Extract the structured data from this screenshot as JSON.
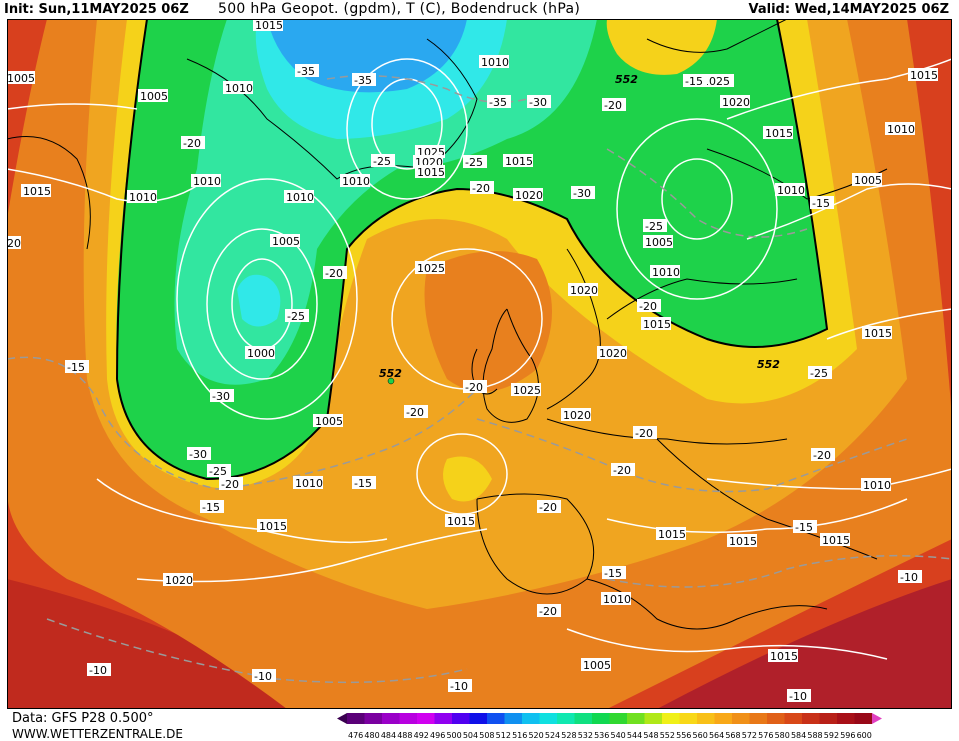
{
  "header": {
    "init": "Init: Sun,11MAY2025 06Z",
    "title": "500 hPa Geopot. (gpdm), T (C), Bodendruck (hPa)",
    "valid": "Valid: Wed,14MAY2025 06Z"
  },
  "footer": {
    "data_source": "Data: GFS P28 0.500°",
    "website": "WWW.WETTERZENTRALE.DE"
  },
  "colors": {
    "dark_red": "#b0202a",
    "red": "#d8401e",
    "orange": "#e8801e",
    "yellow_orange": "#f0a520",
    "yellow": "#f5d21a",
    "green": "#1ed24a",
    "teal": "#32e6a0",
    "cyan": "#30e8e8",
    "light_blue": "#2aa8f0",
    "land_line": "#000000",
    "isobar": "#ffffff",
    "isotherm": "#9a9a9a"
  },
  "colorbar": {
    "levels": [
      "476",
      "480",
      "484",
      "488",
      "492",
      "496",
      "500",
      "504",
      "508",
      "512",
      "516",
      "520",
      "524",
      "528",
      "532",
      "536",
      "540",
      "544",
      "548",
      "552",
      "556",
      "560",
      "564",
      "568",
      "572",
      "576",
      "580",
      "584",
      "588",
      "592",
      "596",
      "600"
    ],
    "colors": [
      "#3a0050",
      "#5a0078",
      "#7a00a0",
      "#9a00c8",
      "#b800e0",
      "#d000f0",
      "#9000f0",
      "#5000f0",
      "#1010e8",
      "#1050f0",
      "#1090f0",
      "#10c0f0",
      "#10e0e0",
      "#10e8b0",
      "#10e080",
      "#10d850",
      "#30d830",
      "#70e020",
      "#b0e818",
      "#f0f018",
      "#f8d818",
      "#f8c018",
      "#f8a818",
      "#f09018",
      "#e87818",
      "#e06018",
      "#d84818",
      "#c83018",
      "#b82018",
      "#a81018",
      "#980818",
      "#e040c0"
    ]
  },
  "pressure_labels": [
    "1015",
    "1005",
    "1010",
    "1015",
    "1010",
    "1005",
    "1000",
    "1005",
    "1010",
    "1015",
    "1020",
    "1025",
    "1020",
    "1015",
    "1025",
    "1010",
    "1010",
    "1015",
    "1020",
    "1025",
    "1020",
    "1010",
    "1005",
    "1010",
    "1015",
    "1020",
    "1025",
    "1020",
    "1015",
    "1010",
    "1015",
    "1010",
    "1005",
    "1015",
    "1010",
    "1015",
    "1015",
    "1015",
    "1010",
    "1005",
    "1015",
    "1020",
    "1015",
    "1005",
    "1010",
    "1015",
    "1005",
    "1010",
    "20"
  ],
  "temp_labels": [
    "-35",
    "-35",
    "-35",
    "-30",
    "-25",
    "-20",
    "-20",
    "-25",
    "-30",
    "-30",
    "-25",
    "-20",
    "-15",
    "-15",
    "-20",
    "-20",
    "-20",
    "-20",
    "-20",
    "-15",
    "-10",
    "-10",
    "-10",
    "-15",
    "-20",
    "-25",
    "-30",
    "-25",
    "-20",
    "-20",
    "-20",
    "-15",
    "-15",
    "-10",
    "-10",
    "-20",
    "-25",
    "-15",
    "-20"
  ],
  "height_labels": [
    "552",
    "552",
    "552"
  ]
}
